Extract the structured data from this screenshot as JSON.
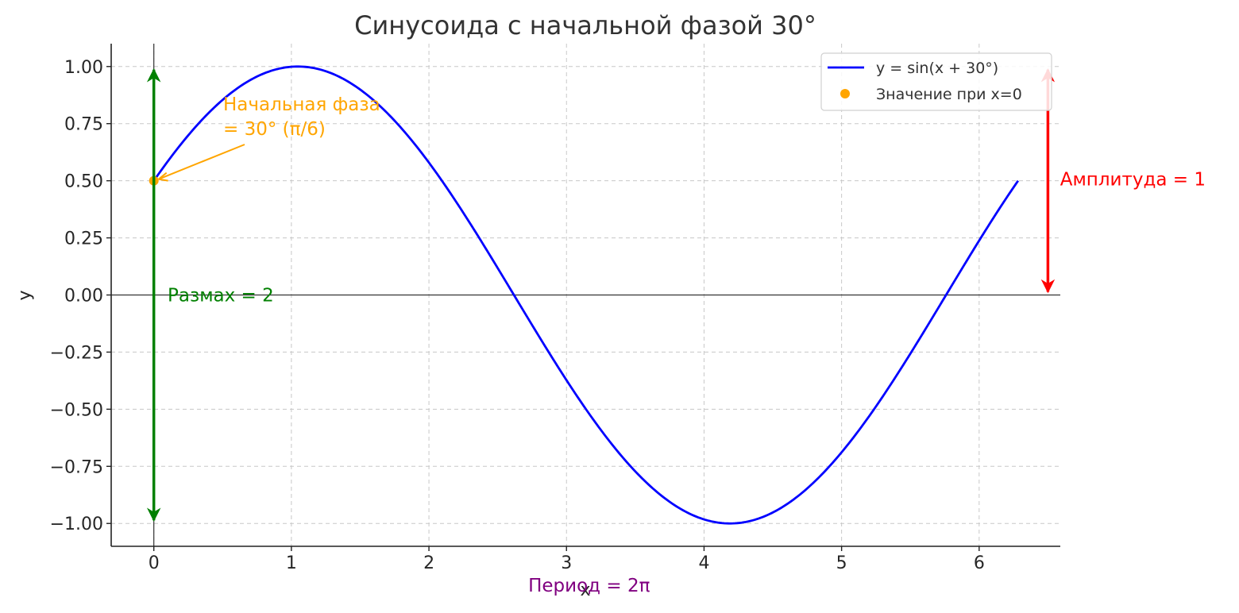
{
  "chart_data": {
    "type": "line",
    "title": "Синусоида с начальной фазой 30°",
    "xlabel": "x",
    "ylabel": "y",
    "xlim": [
      -0.31,
      6.59
    ],
    "ylim": [
      -1.1,
      1.1
    ],
    "x_ticks": [
      0,
      1,
      2,
      3,
      4,
      5,
      6
    ],
    "x_tick_labels": [
      "0",
      "1",
      "2",
      "3",
      "4",
      "5",
      "6"
    ],
    "y_ticks": [
      1.0,
      0.75,
      0.5,
      0.25,
      0.0,
      -0.25,
      -0.5,
      -0.75,
      -1.0
    ],
    "y_tick_labels": [
      "1.00",
      "0.75",
      "0.50",
      "0.25",
      "0.00",
      "−0.25",
      "−0.50",
      "−0.75",
      "−1.00"
    ],
    "grid": true,
    "legend_position": "top-right",
    "series": [
      {
        "name": "y = sin(x + 30°)",
        "kind": "line",
        "color": "#0000ff",
        "x_range": [
          0,
          6.2832
        ],
        "function": "sin(x + π/6)",
        "key_points": [
          {
            "x": 0,
            "y": 0.5
          },
          {
            "x": 1.047,
            "y": 1.0
          },
          {
            "x": 2.618,
            "y": 0.0
          },
          {
            "x": 4.189,
            "y": -1.0
          },
          {
            "x": 5.76,
            "y": 0.0
          },
          {
            "x": 6.283,
            "y": 0.5
          }
        ]
      },
      {
        "name": "Значение при x=0",
        "kind": "scatter",
        "color": "#ffa500",
        "points": [
          {
            "x": 0,
            "y": 0.5
          }
        ]
      }
    ],
    "annotations": [
      {
        "id": "phase",
        "text_line1": "Начальная фаза",
        "text_line2": "= 30° (π/6)",
        "color": "#ffa500",
        "arrow_to": {
          "x": 0,
          "y": 0.5
        },
        "text_at": {
          "x": 0.5,
          "y": 0.8
        }
      },
      {
        "id": "range",
        "text": "Размах = 2",
        "color": "#008000",
        "arrow_from": {
          "x": 0,
          "y": -1
        },
        "arrow_to": {
          "x": 0,
          "y": 1
        },
        "text_at": {
          "x": 0.1,
          "y": 0.0
        }
      },
      {
        "id": "amplitude",
        "text": "Амплитуда = 1",
        "color": "#ff0000",
        "arrow_from": {
          "x": 6.5,
          "y": 1
        },
        "arrow_to": {
          "x": 6.5,
          "y": 0
        },
        "text_at": {
          "x": 6.6,
          "y": 0.5
        }
      },
      {
        "id": "period",
        "text": "Период = 2π",
        "color": "#800080",
        "text_at": {
          "x": 3.1416,
          "y": -1.25
        }
      }
    ]
  }
}
